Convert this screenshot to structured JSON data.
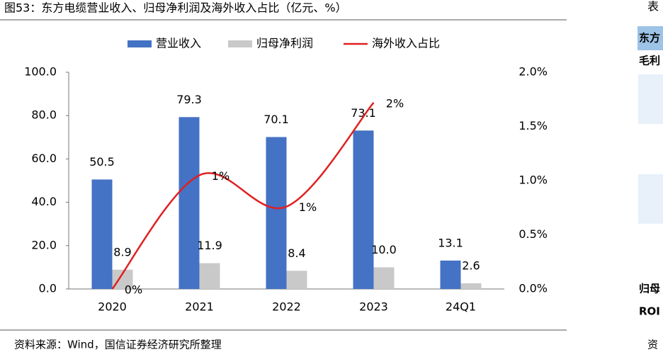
{
  "chart_data": {
    "type": "bar-line",
    "title": "图53：东方电缆营业收入、归母净利润及海外收入占比（亿元、%）",
    "source": "资料来源：Wind，国信证券经济研究所整理",
    "categories": [
      "2020",
      "2021",
      "2022",
      "2023",
      "24Q1"
    ],
    "series": [
      {
        "name": "营业收入",
        "type": "bar",
        "color": "#4472c4",
        "values": [
          50.5,
          79.3,
          70.1,
          73.1,
          13.1
        ]
      },
      {
        "name": "归母净利润",
        "type": "bar",
        "color": "#c9c9c9",
        "values": [
          8.9,
          11.9,
          8.4,
          10.0,
          2.6
        ],
        "value_labels": [
          "8.9",
          "11.9",
          "8.4",
          "10.0",
          "2.6"
        ]
      },
      {
        "name": "海外收入占比",
        "type": "line",
        "axis": "y2",
        "color": "#e02020",
        "values": [
          0,
          1.05,
          0.76,
          1.72,
          null
        ],
        "value_labels": [
          "0%",
          "1%",
          "1%",
          "2%",
          null
        ]
      }
    ],
    "ylim": [
      0,
      100
    ],
    "yticks": [
      {
        "value": 0,
        "label": "0.0"
      },
      {
        "value": 20,
        "label": "20.0"
      },
      {
        "value": 40,
        "label": "40.0"
      },
      {
        "value": 60,
        "label": "60.0"
      },
      {
        "value": 80,
        "label": "80.0"
      },
      {
        "value": 100,
        "label": "100.0"
      }
    ],
    "y2lim": [
      0,
      2
    ],
    "y2ticks": [
      {
        "value": 0,
        "label": "0.0%"
      },
      {
        "value": 0.5,
        "label": "0.5%"
      },
      {
        "value": 1,
        "label": "1.0%"
      },
      {
        "value": 1.5,
        "label": "1.5%"
      },
      {
        "value": 2,
        "label": "2.0%"
      }
    ],
    "legend": "top",
    "grid": false
  },
  "side_panel": {
    "heading": "表",
    "header": "东方",
    "rows": [
      "毛利",
      "归母",
      "ROI"
    ],
    "source": "资"
  }
}
